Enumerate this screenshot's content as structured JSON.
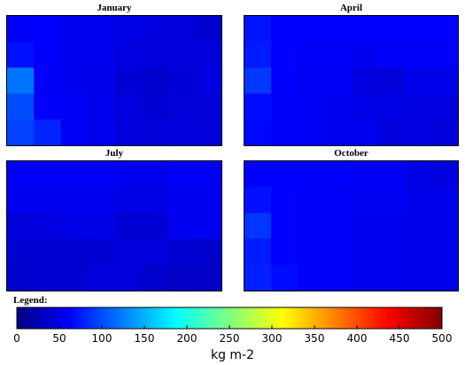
{
  "chart_data": [
    {
      "type": "heatmap",
      "title": "January",
      "rows": 5,
      "cols": 8,
      "values": [
        [
          60,
          62,
          55,
          55,
          50,
          48,
          46,
          40
        ],
        [
          70,
          62,
          55,
          55,
          48,
          46,
          45,
          45
        ],
        [
          120,
          60,
          55,
          52,
          42,
          38,
          42,
          48
        ],
        [
          100,
          62,
          58,
          55,
          48,
          42,
          44,
          44
        ],
        [
          95,
          80,
          58,
          55,
          45,
          44,
          46,
          44
        ]
      ]
    },
    {
      "type": "heatmap",
      "title": "April",
      "rows": 5,
      "cols": 8,
      "values": [
        [
          72,
          62,
          62,
          62,
          62,
          62,
          62,
          62
        ],
        [
          75,
          62,
          60,
          60,
          55,
          60,
          60,
          60
        ],
        [
          90,
          62,
          58,
          58,
          48,
          44,
          52,
          52
        ],
        [
          68,
          60,
          58,
          55,
          52,
          50,
          48,
          48
        ],
        [
          66,
          60,
          58,
          55,
          55,
          45,
          48,
          45
        ]
      ]
    },
    {
      "type": "heatmap",
      "title": "July",
      "rows": 5,
      "cols": 8,
      "values": [
        [
          58,
          58,
          58,
          58,
          55,
          55,
          58,
          58
        ],
        [
          55,
          55,
          55,
          55,
          50,
          50,
          55,
          55
        ],
        [
          45,
          48,
          50,
          50,
          42,
          42,
          55,
          55
        ],
        [
          40,
          40,
          40,
          42,
          46,
          46,
          40,
          38
        ],
        [
          38,
          42,
          42,
          45,
          45,
          38,
          35,
          35
        ]
      ]
    },
    {
      "type": "heatmap",
      "title": "October",
      "rows": 5,
      "cols": 8,
      "values": [
        [
          62,
          62,
          62,
          62,
          58,
          58,
          50,
          48
        ],
        [
          70,
          62,
          60,
          60,
          56,
          56,
          52,
          52
        ],
        [
          88,
          62,
          60,
          60,
          55,
          55,
          52,
          52
        ],
        [
          75,
          62,
          60,
          60,
          55,
          55,
          52,
          52
        ],
        [
          78,
          68,
          60,
          60,
          55,
          55,
          52,
          52
        ]
      ]
    }
  ],
  "legend": {
    "label": "Legend:",
    "colormap": "jet",
    "min": 0,
    "max": 500,
    "ticks": [
      "0",
      "50",
      "100",
      "150",
      "200",
      "250",
      "300",
      "350",
      "400",
      "450",
      "500"
    ],
    "unit": "kg m-2"
  }
}
